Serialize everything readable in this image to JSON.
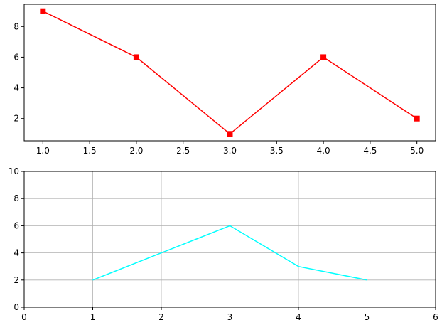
{
  "chart_data": [
    {
      "type": "line",
      "x": [
        1,
        2,
        3,
        4,
        5
      ],
      "series": [
        {
          "color": "#ff0000",
          "marker": "square",
          "values": [
            9,
            6,
            1,
            6,
            2
          ]
        }
      ],
      "xlim": [
        0.8,
        5.2
      ],
      "ylim": [
        0.55,
        9.45
      ],
      "xticks": [
        {
          "value": 1,
          "label": "1.0"
        },
        {
          "value": 1.5,
          "label": "1.5"
        },
        {
          "value": 2,
          "label": "2.0"
        },
        {
          "value": 2.5,
          "label": "2.5"
        },
        {
          "value": 3,
          "label": "3.0"
        },
        {
          "value": 3.5,
          "label": "3.5"
        },
        {
          "value": 4,
          "label": "4.0"
        },
        {
          "value": 4.5,
          "label": "4.5"
        },
        {
          "value": 5,
          "label": "5.0"
        }
      ],
      "yticks": [
        2,
        4,
        6,
        8
      ],
      "grid": false
    },
    {
      "type": "line",
      "x": [
        1,
        2,
        3,
        4,
        5
      ],
      "series": [
        {
          "color": "#00ffff",
          "values": [
            2,
            4,
            6,
            3,
            2
          ]
        }
      ],
      "xlim": [
        0,
        6
      ],
      "ylim": [
        0,
        10
      ],
      "xticks": [
        0,
        1,
        2,
        3,
        4,
        5,
        6
      ],
      "yticks": [
        0,
        2,
        4,
        6,
        8,
        10
      ],
      "grid": true
    }
  ]
}
